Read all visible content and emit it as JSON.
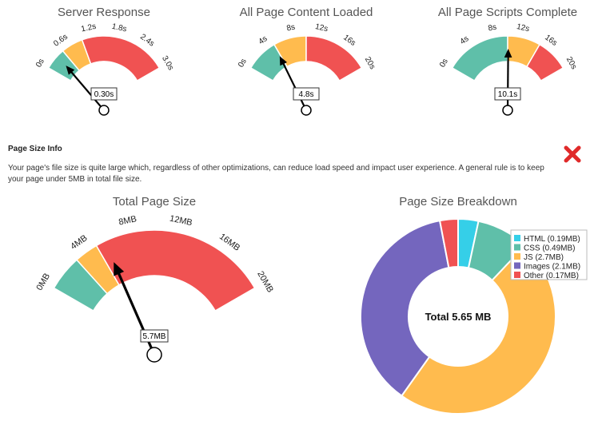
{
  "info": {
    "title": "Page Size Info",
    "body": "Your page's file size is quite large which, regardless of other optimizations, can reduce load speed and impact user experience. A general rule is to keep your page under 5MB in total file size.",
    "status_icon": "red-x-icon"
  },
  "colors": {
    "green": "#5fbfa9",
    "yellow": "#ffbb4e",
    "red": "#f05252",
    "cyan": "#35cfe8",
    "teal": "#5fbfa9",
    "purple": "#7466be"
  },
  "chart_data": [
    {
      "type": "gauge",
      "title": "Server Response",
      "ticks": [
        "0s",
        "0.6s",
        "1.2s",
        "1.8s",
        "2.4s",
        "3.0s"
      ],
      "min": 0,
      "max": 3.0,
      "bands": [
        {
          "from": 0,
          "to": 0.5,
          "color": "#5fbfa9"
        },
        {
          "from": 0.5,
          "to": 1.0,
          "color": "#ffbb4e"
        },
        {
          "from": 1.0,
          "to": 3.0,
          "color": "#f05252"
        }
      ],
      "value": 0.3,
      "value_label": "0.30s"
    },
    {
      "type": "gauge",
      "title": "All Page Content Loaded",
      "ticks": [
        "0s",
        "4s",
        "8s",
        "12s",
        "16s",
        "20s"
      ],
      "min": 0,
      "max": 20,
      "bands": [
        {
          "from": 0,
          "to": 5,
          "color": "#5fbfa9"
        },
        {
          "from": 5,
          "to": 10,
          "color": "#ffbb4e"
        },
        {
          "from": 10,
          "to": 20,
          "color": "#f05252"
        }
      ],
      "value": 4.8,
      "value_label": "4.8s"
    },
    {
      "type": "gauge",
      "title": "All Page Scripts Complete",
      "ticks": [
        "0s",
        "4s",
        "8s",
        "12s",
        "16s",
        "20s"
      ],
      "min": 0,
      "max": 20,
      "bands": [
        {
          "from": 0,
          "to": 10,
          "color": "#5fbfa9"
        },
        {
          "from": 10,
          "to": 15,
          "color": "#ffbb4e"
        },
        {
          "from": 15,
          "to": 20,
          "color": "#f05252"
        }
      ],
      "value": 10.1,
      "value_label": "10.1s"
    },
    {
      "type": "gauge",
      "title": "Total Page Size",
      "ticks": [
        "0MB",
        "4MB",
        "8MB",
        "12MB",
        "16MB",
        "20MB"
      ],
      "min": 0,
      "max": 20,
      "bands": [
        {
          "from": 0,
          "to": 3,
          "color": "#5fbfa9"
        },
        {
          "from": 3,
          "to": 5,
          "color": "#ffbb4e"
        },
        {
          "from": 5,
          "to": 20,
          "color": "#f05252"
        }
      ],
      "value": 5.7,
      "value_label": "5.7MB"
    },
    {
      "type": "pie",
      "title": "Page Size Breakdown",
      "center_label": "Total 5.65 MB",
      "slices": [
        {
          "label": "HTML (0.19MB)",
          "value": 0.19,
          "color": "#35cfe8"
        },
        {
          "label": "CSS (0.49MB)",
          "value": 0.49,
          "color": "#5fbfa9"
        },
        {
          "label": "JS (2.7MB)",
          "value": 2.7,
          "color": "#ffbb4e"
        },
        {
          "label": "Images (2.1MB)",
          "value": 2.1,
          "color": "#7466be"
        },
        {
          "label": "Other (0.17MB)",
          "value": 0.17,
          "color": "#f05252"
        }
      ],
      "legend_position": "top-right"
    }
  ]
}
